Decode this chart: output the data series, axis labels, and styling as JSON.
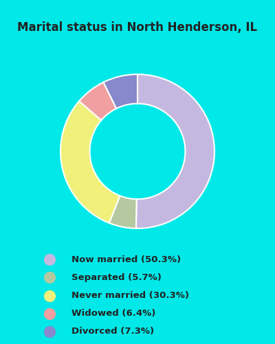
{
  "title": "Marital status in North Henderson, IL",
  "slices": [
    {
      "label": "Now married (50.3%)",
      "value": 50.3,
      "color": "#c5b8e0"
    },
    {
      "label": "Separated (5.7%)",
      "value": 5.7,
      "color": "#b5c9a0"
    },
    {
      "label": "Never married (30.3%)",
      "value": 30.3,
      "color": "#f0f07a"
    },
    {
      "label": "Widowed (6.4%)",
      "value": 6.4,
      "color": "#f0a0a0"
    },
    {
      "label": "Divorced (7.3%)",
      "value": 7.3,
      "color": "#8888cc"
    }
  ],
  "bg_outer": "#00e8e8",
  "bg_chart": "#ddeee6",
  "title_color": "#222222",
  "legend_text_color": "#222222",
  "donut_width": 0.38,
  "start_angle": 90
}
